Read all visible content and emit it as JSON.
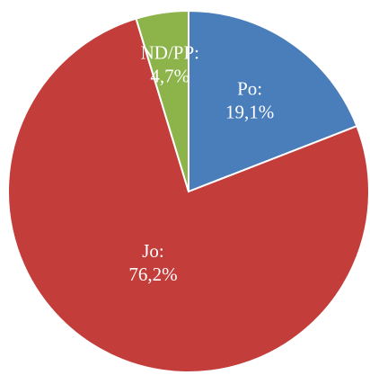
{
  "chart_data": {
    "type": "pie",
    "categories": [
      "Po:",
      "Jo:",
      "ND/PP:"
    ],
    "values": [
      19.1,
      76.2,
      4.7
    ],
    "value_labels": [
      "19,1%",
      "76,2%",
      "4,7%"
    ],
    "colors": [
      "#4a7ebb",
      "#c33d3a",
      "#8cb44a"
    ]
  }
}
